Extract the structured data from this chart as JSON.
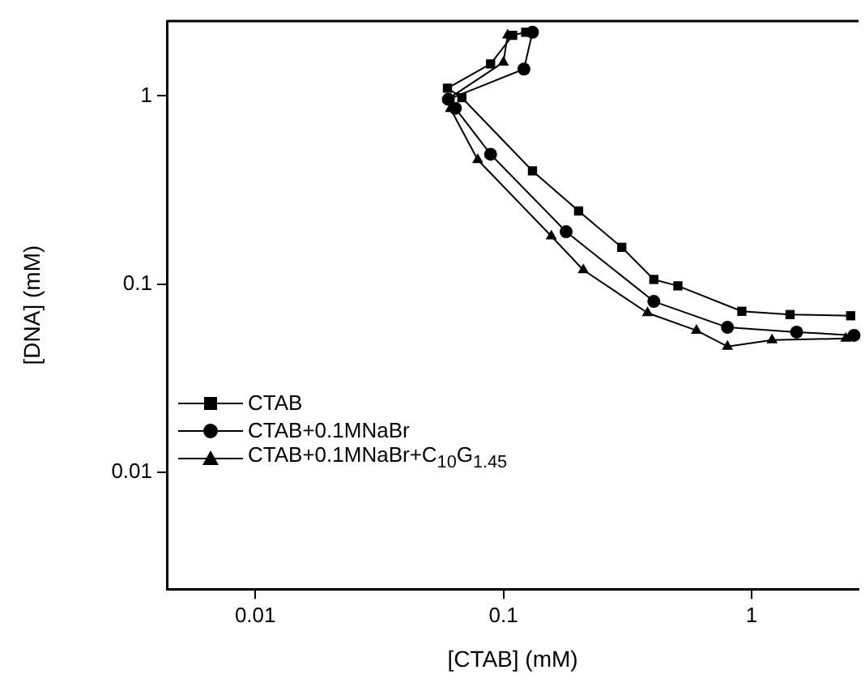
{
  "chart_data": {
    "type": "line",
    "xlabel": "[CTAB] (mM)",
    "ylabel": "[DNA] (mM)",
    "log": "xy",
    "grid": false,
    "legend": "left",
    "xlim": [
      0.0044,
      2.7
    ],
    "xticks": [
      0.01,
      0.1,
      1
    ],
    "ylim": [
      0.0024,
      2.5
    ],
    "yticks": [
      0.01,
      0.1,
      1
    ],
    "line_style": "solid",
    "series": [
      {
        "name": "CTAB",
        "color": "#000000",
        "marker": "square",
        "x": [
          0.123,
          0.109,
          0.0888,
          0.0595,
          0.068,
          0.131,
          0.201,
          0.3,
          0.404,
          0.505,
          0.914,
          1.43,
          2.51
        ],
        "values": [
          2.18,
          2.1,
          1.48,
          1.1,
          0.98,
          0.4,
          0.245,
          0.157,
          0.106,
          0.098,
          0.0718,
          0.069,
          0.068
        ]
      },
      {
        "name": "CTAB+0.1MNaBr",
        "color": "#000000",
        "marker": "circle",
        "x": [
          0.131,
          0.121,
          0.06,
          0.064,
          0.0888,
          0.179,
          0.404,
          0.8,
          1.52,
          2.59
        ],
        "values": [
          2.18,
          1.39,
          0.96,
          0.86,
          0.49,
          0.19,
          0.081,
          0.059,
          0.0557,
          0.0535
        ]
      },
      {
        "name": "CTAB+0.1MNaBr+C$_{10}$G$_{1.45}$",
        "color": "#000000",
        "marker": "triangle",
        "x": [
          0.104,
          0.1,
          0.0595,
          0.0612,
          0.0788,
          0.156,
          0.21,
          0.381,
          0.6,
          0.8,
          1.21,
          2.4
        ],
        "values": [
          2.1,
          1.51,
          0.96,
          0.855,
          0.458,
          0.18,
          0.119,
          0.0704,
          0.0568,
          0.0467,
          0.0505,
          0.0515
        ]
      }
    ]
  }
}
